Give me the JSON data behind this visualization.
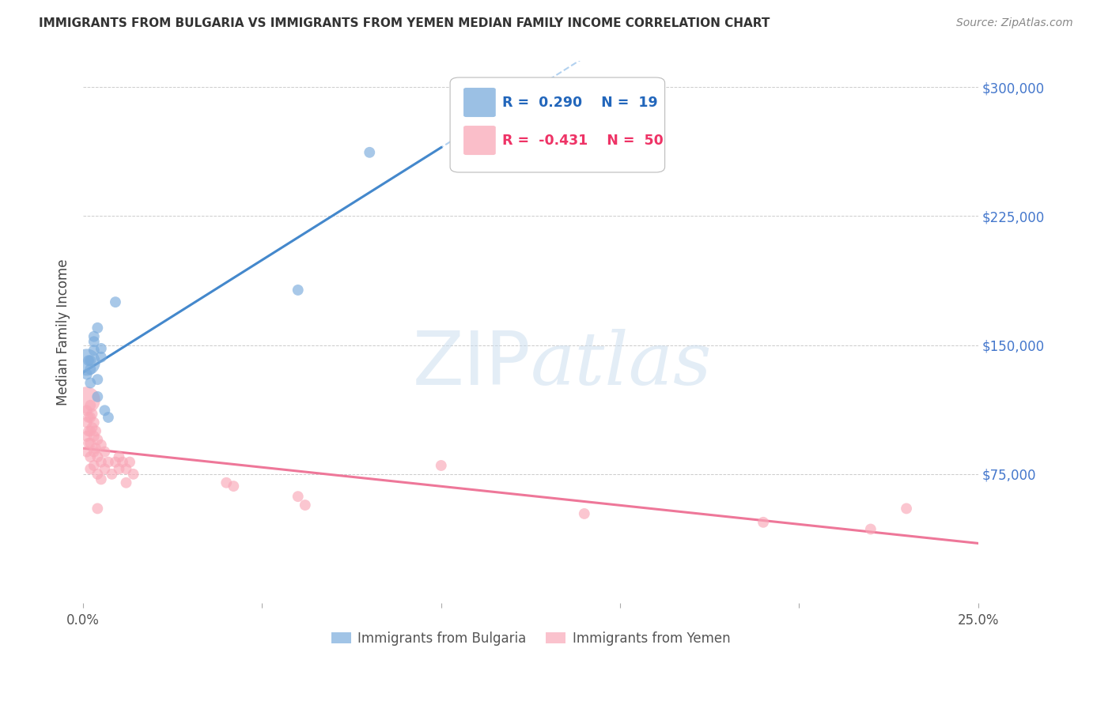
{
  "title": "IMMIGRANTS FROM BULGARIA VS IMMIGRANTS FROM YEMEN MEDIAN FAMILY INCOME CORRELATION CHART",
  "source": "Source: ZipAtlas.com",
  "ylabel": "Median Family Income",
  "yticks": [
    0,
    75000,
    150000,
    225000,
    300000
  ],
  "ytick_labels": [
    "",
    "$75,000",
    "$150,000",
    "$225,000",
    "$300,000"
  ],
  "xlim": [
    0.0,
    0.25
  ],
  "ylim": [
    0,
    315000
  ],
  "watermark": "ZIPatlas",
  "legend_bulgaria_R": 0.29,
  "legend_bulgaria_N": 19,
  "legend_yemen_R": -0.431,
  "legend_yemen_N": 50,
  "bulgaria_color": "#7AABDC",
  "yemen_color": "#F9A8B8",
  "trend_bulgaria_solid_color": "#4488CC",
  "trend_bulgaria_dash_color": "#AACCEE",
  "trend_yemen_color": "#EE7799",
  "bulgaria_points": [
    [
      0.001,
      140000
    ],
    [
      0.001,
      133000
    ],
    [
      0.0015,
      141000
    ],
    [
      0.002,
      141000
    ],
    [
      0.002,
      136000
    ],
    [
      0.002,
      128000
    ],
    [
      0.003,
      152000
    ],
    [
      0.003,
      155000
    ],
    [
      0.003,
      147000
    ],
    [
      0.004,
      160000
    ],
    [
      0.004,
      130000
    ],
    [
      0.004,
      120000
    ],
    [
      0.005,
      148000
    ],
    [
      0.005,
      143000
    ],
    [
      0.006,
      112000
    ],
    [
      0.007,
      108000
    ],
    [
      0.009,
      175000
    ],
    [
      0.06,
      182000
    ],
    [
      0.08,
      262000
    ]
  ],
  "bulgaria_sizes": [
    600,
    100,
    100,
    100,
    100,
    100,
    100,
    100,
    100,
    100,
    100,
    100,
    100,
    100,
    100,
    100,
    100,
    100,
    100
  ],
  "yemen_points": [
    [
      0.001,
      118000
    ],
    [
      0.001,
      112000
    ],
    [
      0.001,
      105000
    ],
    [
      0.001,
      97000
    ],
    [
      0.001,
      88000
    ],
    [
      0.0015,
      108000
    ],
    [
      0.0015,
      100000
    ],
    [
      0.0015,
      93000
    ],
    [
      0.002,
      115000
    ],
    [
      0.002,
      108000
    ],
    [
      0.002,
      100000
    ],
    [
      0.002,
      93000
    ],
    [
      0.002,
      85000
    ],
    [
      0.002,
      78000
    ],
    [
      0.0025,
      110000
    ],
    [
      0.0025,
      102000
    ],
    [
      0.003,
      105000
    ],
    [
      0.003,
      97000
    ],
    [
      0.003,
      88000
    ],
    [
      0.003,
      80000
    ],
    [
      0.0035,
      100000
    ],
    [
      0.0035,
      90000
    ],
    [
      0.004,
      95000
    ],
    [
      0.004,
      85000
    ],
    [
      0.004,
      75000
    ],
    [
      0.004,
      55000
    ],
    [
      0.005,
      92000
    ],
    [
      0.005,
      82000
    ],
    [
      0.005,
      72000
    ],
    [
      0.006,
      88000
    ],
    [
      0.006,
      78000
    ],
    [
      0.007,
      82000
    ],
    [
      0.008,
      75000
    ],
    [
      0.009,
      82000
    ],
    [
      0.01,
      85000
    ],
    [
      0.01,
      78000
    ],
    [
      0.011,
      82000
    ],
    [
      0.012,
      78000
    ],
    [
      0.012,
      70000
    ],
    [
      0.013,
      82000
    ],
    [
      0.014,
      75000
    ],
    [
      0.04,
      70000
    ],
    [
      0.042,
      68000
    ],
    [
      0.06,
      62000
    ],
    [
      0.062,
      57000
    ],
    [
      0.1,
      80000
    ],
    [
      0.14,
      52000
    ],
    [
      0.19,
      47000
    ],
    [
      0.22,
      43000
    ],
    [
      0.23,
      55000
    ]
  ],
  "yemen_sizes": [
    600,
    100,
    100,
    100,
    100,
    100,
    100,
    100,
    100,
    100,
    100,
    100,
    100,
    100,
    100,
    100,
    100,
    100,
    100,
    100,
    100,
    100,
    100,
    100,
    100,
    100,
    100,
    100,
    100,
    100,
    100,
    100,
    100,
    100,
    100,
    100,
    100,
    100,
    100,
    100,
    100,
    100,
    100,
    100,
    100,
    100,
    100,
    100,
    100,
    100
  ]
}
